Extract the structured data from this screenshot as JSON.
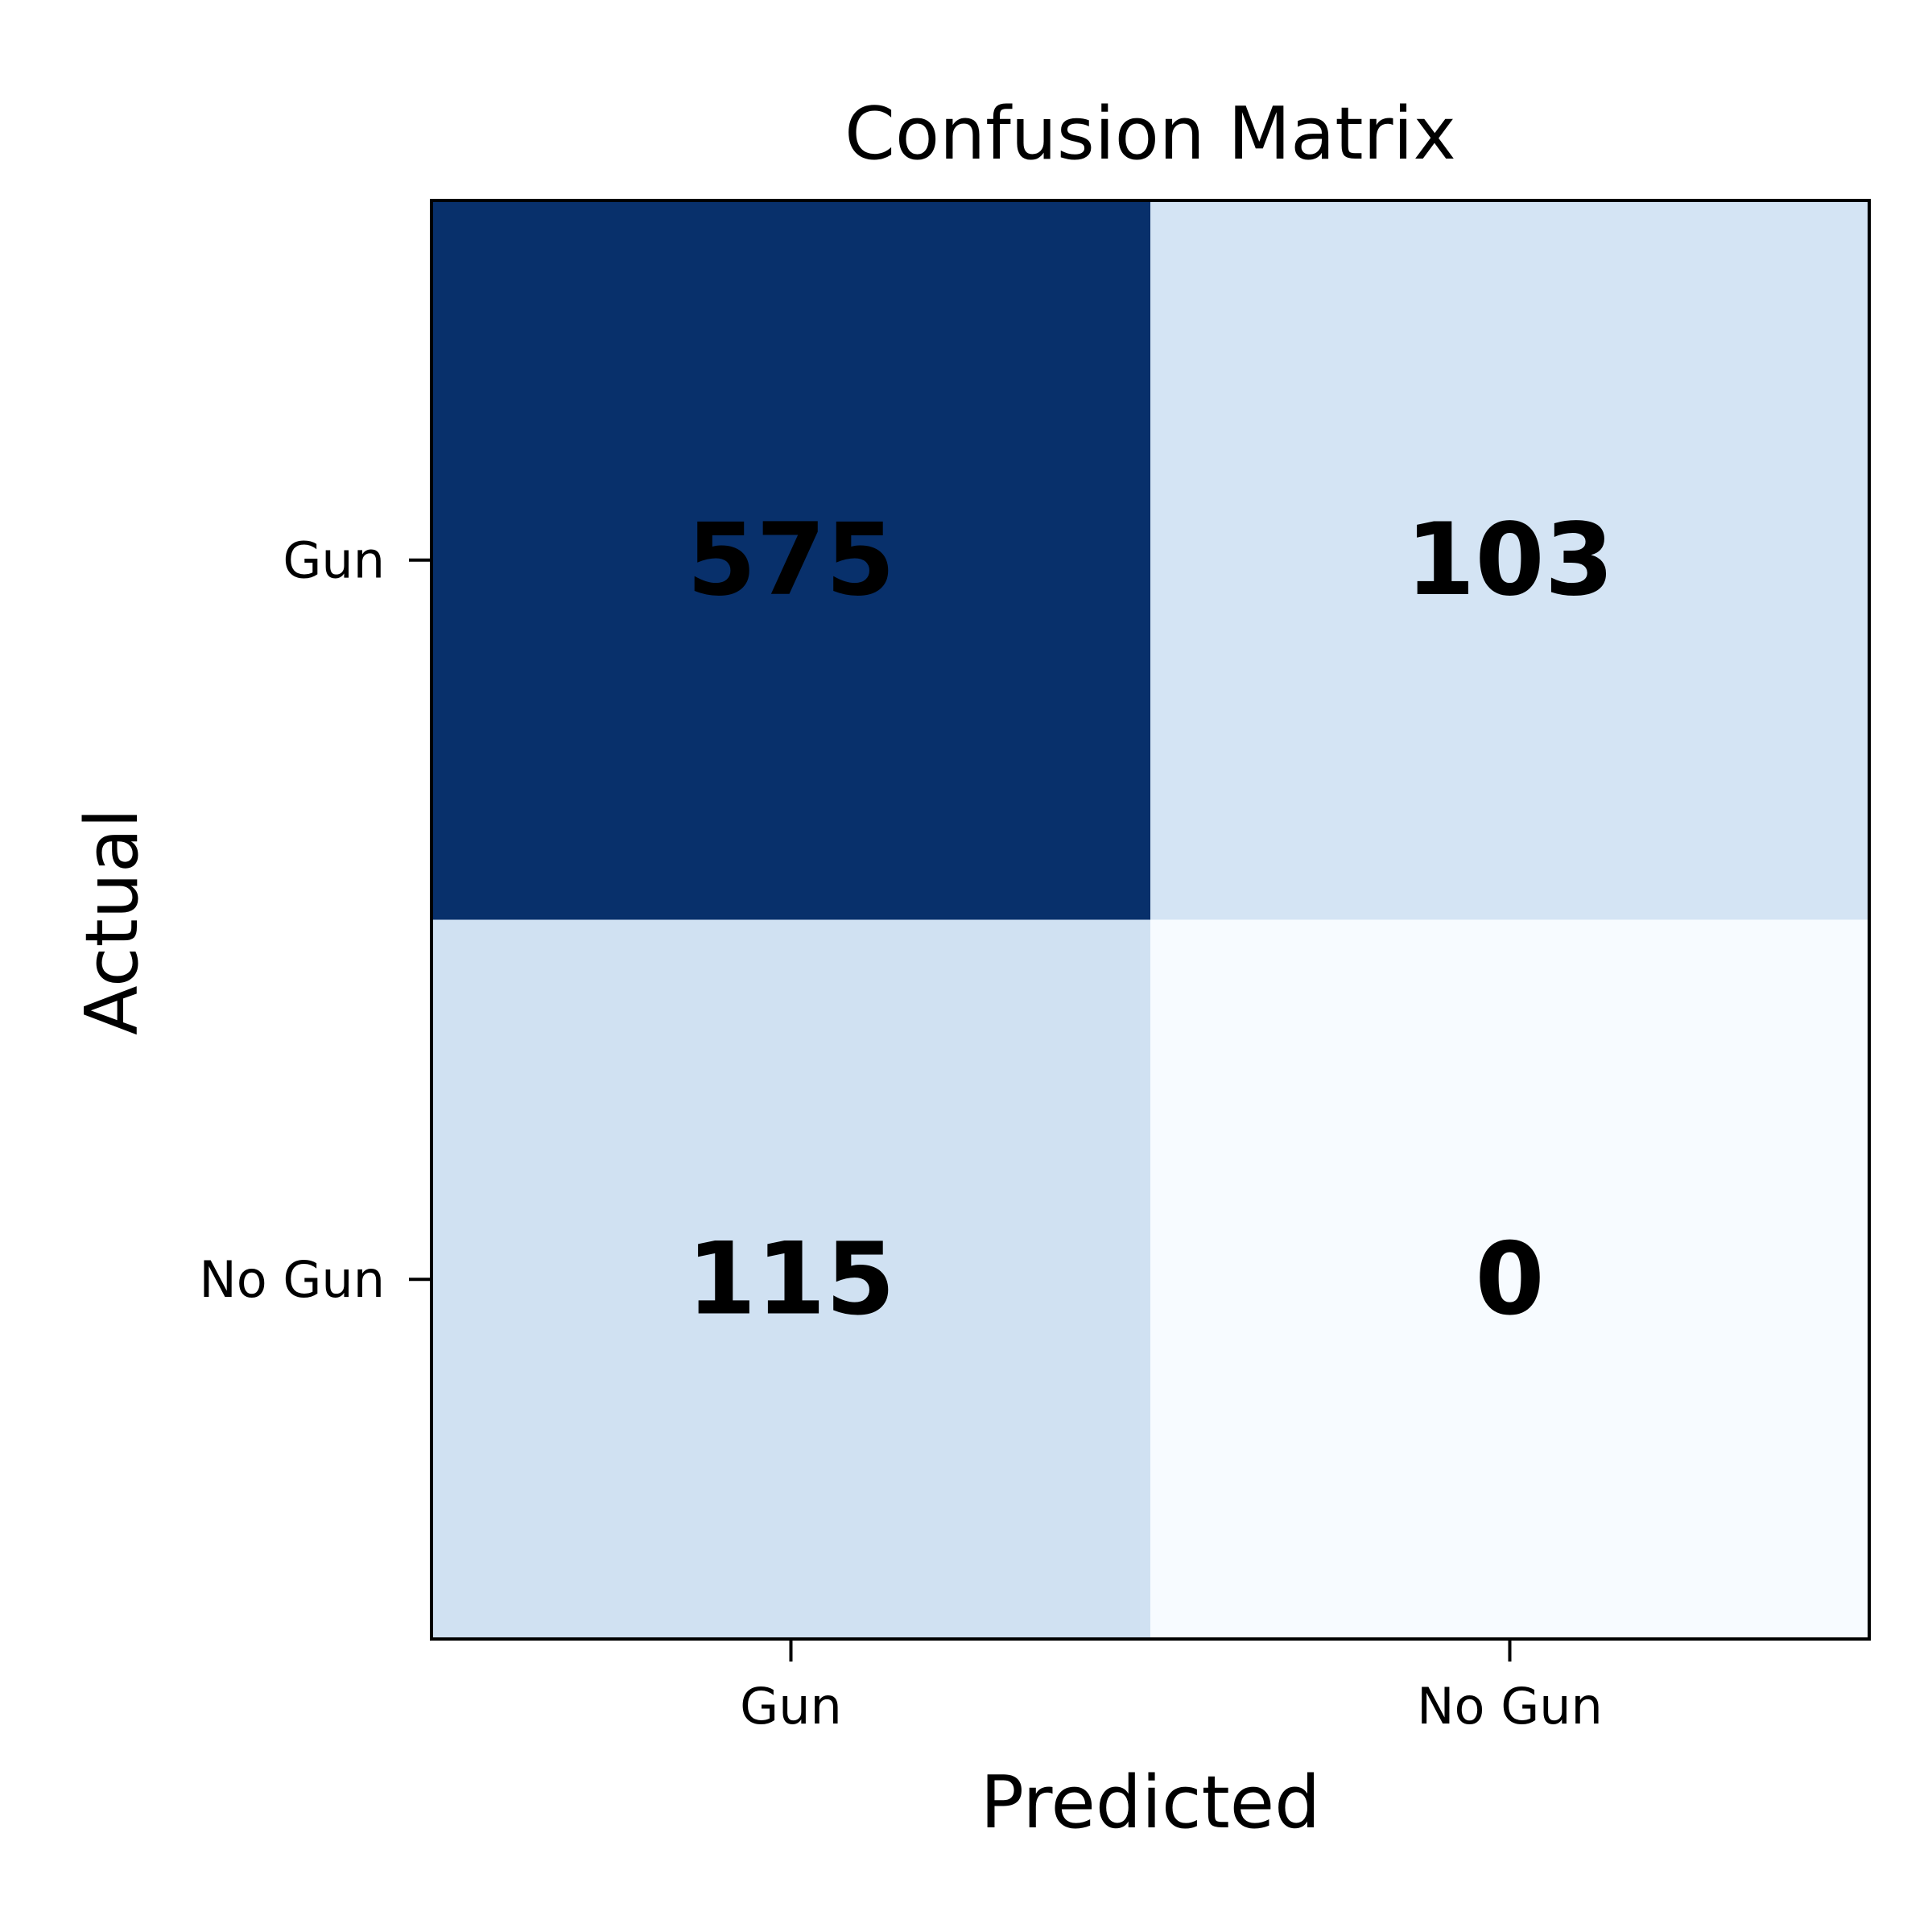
{
  "chart_data": {
    "type": "heatmap",
    "title": "Confusion Matrix",
    "xlabel": "Predicted",
    "ylabel": "Actual",
    "x_categories": [
      "Gun",
      "No Gun"
    ],
    "y_categories": [
      "Gun",
      "No Gun"
    ],
    "values": [
      [
        575,
        103
      ],
      [
        115,
        0
      ]
    ],
    "colormap": "Blues",
    "colorbar": false,
    "grid": false
  }
}
